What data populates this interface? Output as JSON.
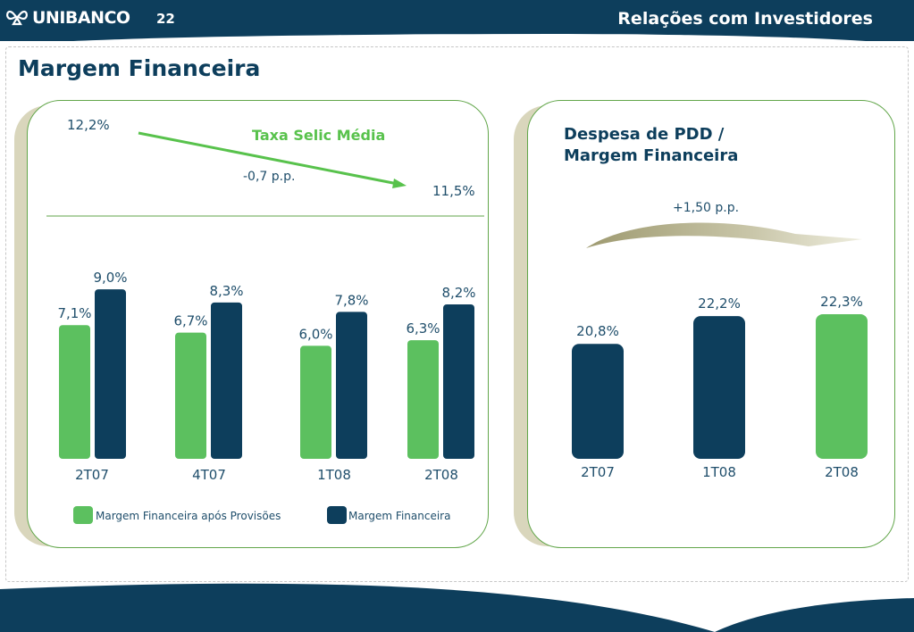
{
  "header": {
    "brand": "UNIBANCO",
    "page_number": "22",
    "section": "Relações com Investidores"
  },
  "page_title": "Margem Financeira",
  "colors": {
    "navy": "#0d3e5c",
    "green": "#5cc05f",
    "panel_border": "#62a64a",
    "text_dark": "#1f4e6b",
    "arrow_green": "#58c24c"
  },
  "selic": {
    "title": "Taxa Selic Média",
    "start_value": "12,2%",
    "end_value": "11,5%",
    "change": "-0,7 p.p."
  },
  "pdd": {
    "title_line1": "Despesa de PDD /",
    "title_line2": "Margem Financeira",
    "change": "+1,50 p.p."
  },
  "chart_data": [
    {
      "type": "bar",
      "categories": [
        "2T07",
        "4T07",
        "1T08",
        "2T08"
      ],
      "series": [
        {
          "name": "Margem Financeira após Provisões",
          "values": [
            7.1,
            6.7,
            6.0,
            6.3
          ],
          "labels": [
            "7,1%",
            "6,7%",
            "6,0%",
            "6,3%"
          ],
          "color": "#5cc05f"
        },
        {
          "name": "Margem Financeira",
          "values": [
            9.0,
            8.3,
            7.8,
            8.2
          ],
          "labels": [
            "9,0%",
            "8,3%",
            "7,8%",
            "8,2%"
          ],
          "color": "#0d3e5c"
        }
      ],
      "legend": "bottom"
    },
    {
      "type": "bar",
      "title": "Despesa de PDD / Margem Financeira",
      "categories": [
        "2T07",
        "1T08",
        "2T08"
      ],
      "values": [
        20.8,
        22.2,
        22.3
      ],
      "labels": [
        "20,8%",
        "22,2%",
        "22,3%"
      ],
      "colors": [
        "#0d3e5c",
        "#0d3e5c",
        "#5cc05f"
      ]
    }
  ]
}
